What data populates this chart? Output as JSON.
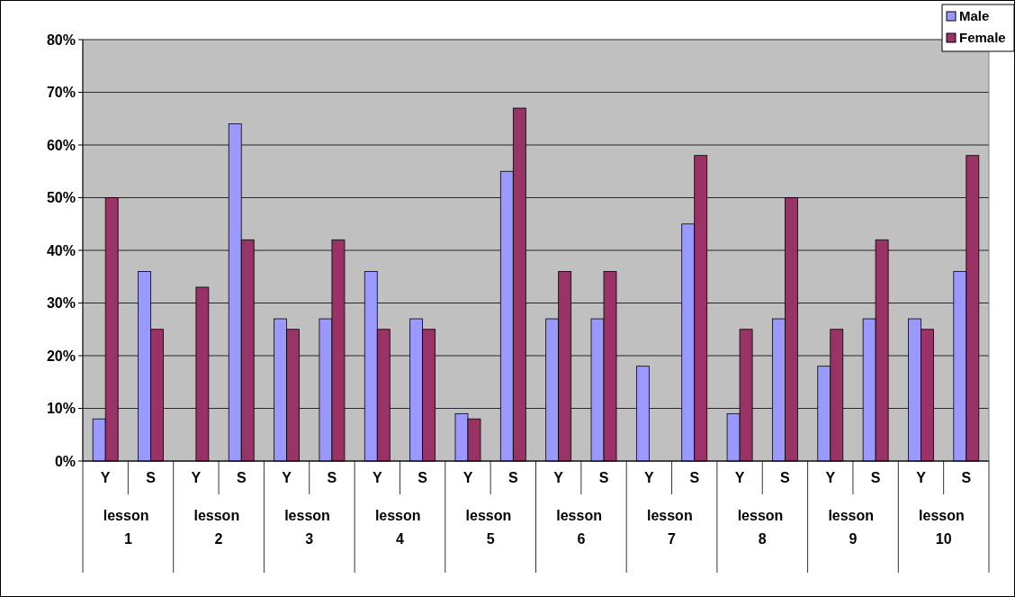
{
  "chart_data": {
    "type": "bar",
    "categories": [
      "Y",
      "S",
      "Y",
      "S",
      "Y",
      "S",
      "Y",
      "S",
      "Y",
      "S",
      "Y",
      "S",
      "Y",
      "S",
      "Y",
      "S",
      "Y",
      "S",
      "Y",
      "S"
    ],
    "series": [
      {
        "name": "Male",
        "color": "#9999ff",
        "values": [
          8,
          36,
          0,
          64,
          27,
          27,
          36,
          27,
          9,
          55,
          27,
          27,
          18,
          45,
          9,
          27,
          18,
          27,
          27,
          36
        ]
      },
      {
        "name": "Female",
        "color": "#993366",
        "values": [
          50,
          25,
          33,
          42,
          25,
          42,
          25,
          25,
          8,
          67,
          36,
          36,
          0,
          58,
          25,
          50,
          25,
          42,
          25,
          58
        ]
      }
    ],
    "annotations": [
      "lesson 1",
      "lesson 2",
      "lesson 3",
      "lesson 4",
      "lesson 5",
      "lesson 6",
      "lesson 7",
      "lesson 8",
      "lesson 9",
      "lesson 10"
    ],
    "ylim": [
      0,
      80
    ],
    "yticks": [
      {
        "value": 0,
        "label": "0%"
      },
      {
        "value": 10,
        "label": "10%"
      },
      {
        "value": 20,
        "label": "20%"
      },
      {
        "value": 30,
        "label": "30%"
      },
      {
        "value": 40,
        "label": "40%"
      },
      {
        "value": 50,
        "label": "50%"
      },
      {
        "value": 60,
        "label": "60%"
      },
      {
        "value": 70,
        "label": "70%"
      },
      {
        "value": 80,
        "label": "80%"
      }
    ],
    "grid": "y",
    "legend": "top right"
  }
}
